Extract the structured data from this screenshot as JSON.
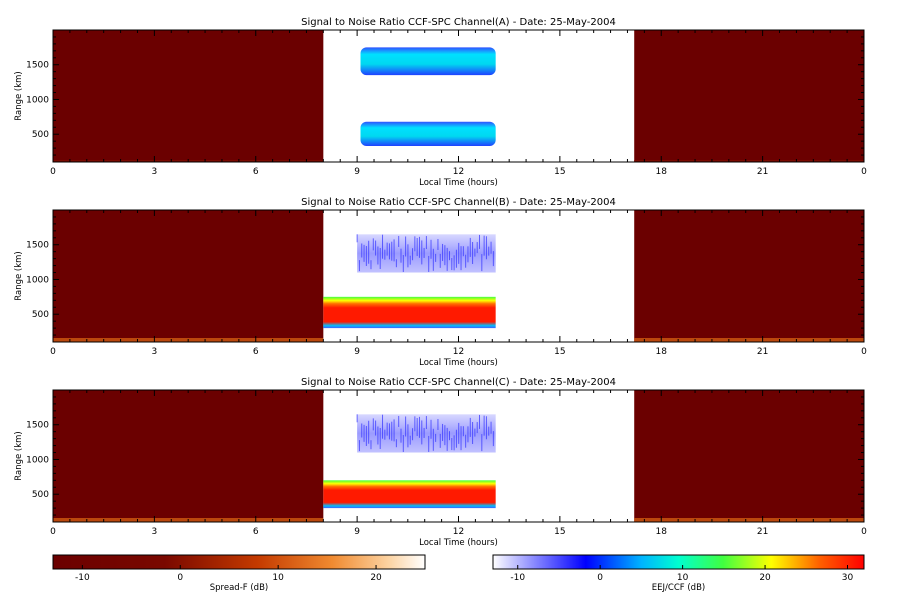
{
  "chart_data": {
    "type": "heatmap",
    "panels": [
      {
        "title": "Signal to Noise Ratio CCF-SPC Channel(A) - Date: 25-May-2004",
        "xlabel": "Local Time (hours)",
        "ylabel": "Range (km)",
        "xlim": [
          0,
          24
        ],
        "ylim": [
          100,
          2000
        ],
        "x_ticks": [
          "0",
          "3",
          "6",
          "9",
          "12",
          "15",
          "18",
          "21",
          "0"
        ],
        "y_ticks": [
          500,
          1000,
          1500
        ],
        "spreadf_intervals_hours": [
          [
            0,
            8.0
          ],
          [
            17.2,
            24
          ]
        ],
        "ccf_interval_hours": [
          8.0,
          13.1
        ],
        "features": [
          {
            "t_start": 9.1,
            "t_end": 13.1,
            "range_low_km": 1350,
            "range_high_km": 1750,
            "snr_db": 5
          },
          {
            "t_start": 9.1,
            "t_end": 13.1,
            "range_low_km": 330,
            "range_high_km": 680,
            "snr_db": 5
          }
        ]
      },
      {
        "title": "Signal to Noise Ratio CCF-SPC Channel(B) - Date: 25-May-2004",
        "xlabel": "Local Time (hours)",
        "ylabel": "Range (km)",
        "xlim": [
          0,
          24
        ],
        "ylim": [
          100,
          2000
        ],
        "x_ticks": [
          "0",
          "3",
          "6",
          "9",
          "12",
          "15",
          "18",
          "21",
          "0"
        ],
        "y_ticks": [
          500,
          1000,
          1500
        ],
        "spreadf_intervals_hours": [
          [
            0,
            8.0
          ],
          [
            17.2,
            24
          ]
        ],
        "ccf_interval_hours": [
          8.0,
          13.1
        ],
        "features": [
          {
            "t_start": 9.0,
            "t_end": 13.1,
            "range_low_km": 1100,
            "range_high_km": 1650,
            "snr_db": -5
          },
          {
            "t_start": 8.0,
            "t_end": 13.1,
            "range_low_km": 300,
            "range_high_km": 750,
            "snr_db": 30
          }
        ]
      },
      {
        "title": "Signal to Noise Ratio CCF-SPC Channel(C) - Date: 25-May-2004",
        "xlabel": "Local Time (hours)",
        "ylabel": "Range (km)",
        "xlim": [
          0,
          24
        ],
        "ylim": [
          100,
          2000
        ],
        "x_ticks": [
          "0",
          "3",
          "6",
          "9",
          "12",
          "15",
          "18",
          "21",
          "0"
        ],
        "y_ticks": [
          500,
          1000,
          1500
        ],
        "spreadf_intervals_hours": [
          [
            0,
            8.0
          ],
          [
            17.2,
            24
          ]
        ],
        "ccf_interval_hours": [
          8.0,
          13.1
        ],
        "features": [
          {
            "t_start": 9.0,
            "t_end": 13.1,
            "range_low_km": 1100,
            "range_high_km": 1650,
            "snr_db": -5
          },
          {
            "t_start": 8.0,
            "t_end": 13.1,
            "range_low_km": 300,
            "range_high_km": 700,
            "snr_db": 30
          }
        ]
      }
    ],
    "colorbars": [
      {
        "label": "Spread-F (dB)",
        "min": -13,
        "max": 25,
        "ticks": [
          "-10",
          "0",
          "10",
          "20"
        ],
        "tick_values": [
          -10,
          0,
          10,
          20
        ],
        "colormap": "dark-red-to-white"
      },
      {
        "label": "EEJ/CCF (dB)",
        "min": -13,
        "max": 32,
        "ticks": [
          "-10",
          "0",
          "10",
          "20",
          "30"
        ],
        "tick_values": [
          -10,
          0,
          10,
          20,
          30
        ],
        "colormap": "white-blue-cyan-green-yellow-red"
      }
    ]
  }
}
